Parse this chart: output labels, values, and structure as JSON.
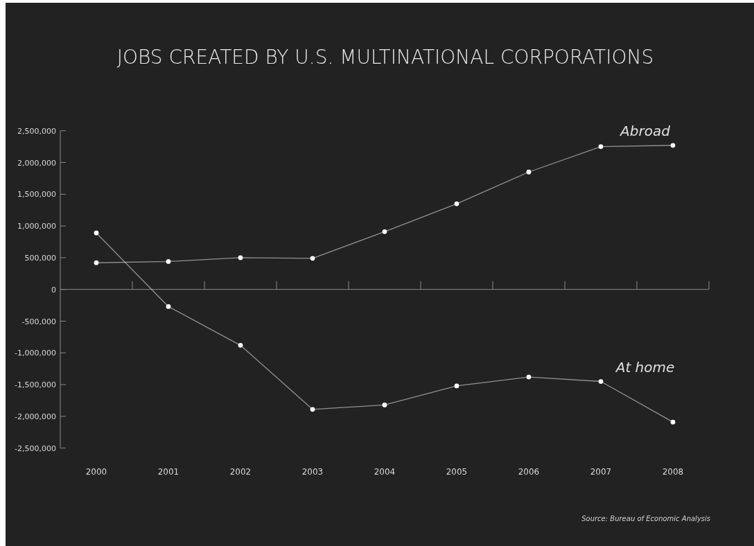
{
  "chart_data": {
    "type": "line",
    "title": "JOBS CREATED BY U.S. MULTINATIONAL CORPORATIONS",
    "categories": [
      "2000",
      "2001",
      "2002",
      "2003",
      "2004",
      "2005",
      "2006",
      "2007",
      "2008"
    ],
    "series": [
      {
        "name": "Abroad",
        "color": "#ffffff",
        "values": [
          420000,
          440000,
          500000,
          490000,
          910000,
          1350000,
          1850000,
          2250000,
          2270000
        ]
      },
      {
        "name": "At home",
        "color": "#ffffff",
        "values": [
          890000,
          -270000,
          -880000,
          -1890000,
          -1820000,
          -1520000,
          -1380000,
          -1450000,
          -2090000
        ]
      }
    ],
    "ylim": [
      -2500000,
      2500000
    ],
    "yticks": [
      {
        "value": 2500000,
        "label": "2,500,000"
      },
      {
        "value": 2000000,
        "label": "2,000,000"
      },
      {
        "value": 1500000,
        "label": "1,500,000"
      },
      {
        "value": 1000000,
        "label": "1,000,000"
      },
      {
        "value": 500000,
        "label": "500,000"
      },
      0,
      {
        "value": -500000,
        "label": "-500,000"
      },
      {
        "value": -1000000,
        "label": "-1,000,000"
      },
      {
        "value": -1500000,
        "label": "-1,500,000"
      },
      {
        "value": -2000000,
        "label": "-2,000,000"
      },
      {
        "value": -2500000,
        "label": "-2,500,000"
      }
    ],
    "marker": "circle",
    "line_style": "solid",
    "legend": false,
    "annotations": [
      "Source: Bureau of Economic Analysis"
    ]
  }
}
